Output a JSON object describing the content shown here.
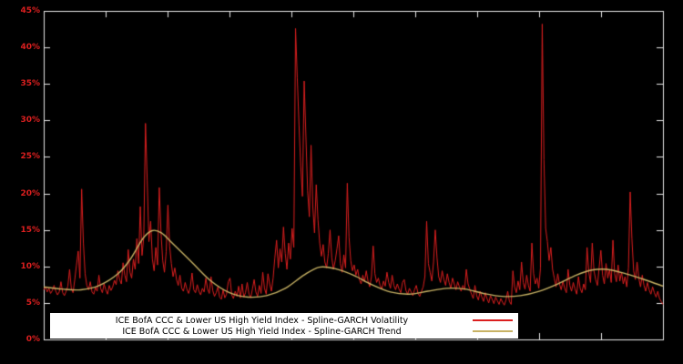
{
  "chart_data": {
    "type": "line",
    "title": "",
    "xlabel": "",
    "ylabel": "",
    "ylim": [
      0,
      45
    ],
    "y_ticks": [
      "0%",
      "5%",
      "10%",
      "15%",
      "20%",
      "25%",
      "30%",
      "35%",
      "40%",
      "45%"
    ],
    "grid": false,
    "legend_position": "bottom-center-inside",
    "background": "#000000",
    "frame_color": "#e8e8e8",
    "tick_label_color": "#db1f1f",
    "legend_bg": "#ffffff",
    "legend_text_color": "#000000",
    "series": [
      {
        "name": "ICE BofA CCC & Lower US High Yield Index - Spline-GARCH Volatility",
        "color": "#db1f1f",
        "style": "spiky",
        "values": [
          6.8,
          7.2,
          6.5,
          7.0,
          6.3,
          6.7,
          7.4,
          6.6,
          6.1,
          6.5,
          7.9,
          6.4,
          6.0,
          6.6,
          7.3,
          9.6,
          7.0,
          6.4,
          8.2,
          10.2,
          12.1,
          8.4,
          20.6,
          13.2,
          9.0,
          7.4,
          6.8,
          7.9,
          6.5,
          6.2,
          7.1,
          6.6,
          8.8,
          7.0,
          6.4,
          7.6,
          6.8,
          6.2,
          7.4,
          6.7,
          7.2,
          8.1,
          7.5,
          9.4,
          8.2,
          7.6,
          10.5,
          8.8,
          7.9,
          12.3,
          9.2,
          8.4,
          11.0,
          9.6,
          13.8,
          10.4,
          18.2,
          11.5,
          14.0,
          29.6,
          21.8,
          13.4,
          16.2,
          11.0,
          9.4,
          12.6,
          10.2,
          20.8,
          14.6,
          10.8,
          9.2,
          12.0,
          18.4,
          12.8,
          10.4,
          8.6,
          9.8,
          8.2,
          7.4,
          8.8,
          7.0,
          6.6,
          7.8,
          6.9,
          6.3,
          7.2,
          9.1,
          6.8,
          6.4,
          7.5,
          6.6,
          6.1,
          7.0,
          6.5,
          8.4,
          6.9,
          6.3,
          8.6,
          6.7,
          5.9,
          6.4,
          7.2,
          5.8,
          5.5,
          6.8,
          5.7,
          6.2,
          7.9,
          8.4,
          6.1,
          5.6,
          6.6,
          5.9,
          7.3,
          5.7,
          7.6,
          5.8,
          6.4,
          7.8,
          6.2,
          5.7,
          6.9,
          8.2,
          6.5,
          5.9,
          7.4,
          6.3,
          9.2,
          7.0,
          6.2,
          9.0,
          7.6,
          6.6,
          8.4,
          11.2,
          13.6,
          9.8,
          12.4,
          10.6,
          15.4,
          11.8,
          9.6,
          13.2,
          11.0,
          15.2,
          12.6,
          42.6,
          35.8,
          29.4,
          23.8,
          19.6,
          35.4,
          27.8,
          20.4,
          16.8,
          26.6,
          18.2,
          14.6,
          21.2,
          16.4,
          13.2,
          11.4,
          13.0,
          10.6,
          9.8,
          11.8,
          15.0,
          11.2,
          9.6,
          10.8,
          12.4,
          14.2,
          10.4,
          9.2,
          11.6,
          9.8,
          21.4,
          14.0,
          10.8,
          9.4,
          10.2,
          8.8,
          9.6,
          8.2,
          7.6,
          8.8,
          7.9,
          9.4,
          8.0,
          7.2,
          8.6,
          12.8,
          9.0,
          7.8,
          8.4,
          7.4,
          6.9,
          8.0,
          7.3,
          9.2,
          7.8,
          7.0,
          8.8,
          7.4,
          6.8,
          7.6,
          6.9,
          6.4,
          7.8,
          8.2,
          6.7,
          6.2,
          7.0,
          6.5,
          6.0,
          6.8,
          7.4,
          6.3,
          5.9,
          6.6,
          7.2,
          8.6,
          16.2,
          10.4,
          9.2,
          8.0,
          10.6,
          15.0,
          11.2,
          8.6,
          7.8,
          9.4,
          8.2,
          7.4,
          9.0,
          7.8,
          7.0,
          8.4,
          7.6,
          6.8,
          7.9,
          7.2,
          6.6,
          7.4,
          6.8,
          9.6,
          7.6,
          6.9,
          6.2,
          5.6,
          7.4,
          6.0,
          5.4,
          6.6,
          5.8,
          5.2,
          6.4,
          5.6,
          5.0,
          6.0,
          5.5,
          4.9,
          5.8,
          5.3,
          4.8,
          5.6,
          5.1,
          4.7,
          5.4,
          6.6,
          5.2,
          4.8,
          9.4,
          7.2,
          6.4,
          8.0,
          6.8,
          10.6,
          7.8,
          6.9,
          8.8,
          7.4,
          6.6,
          13.2,
          9.0,
          7.6,
          8.4,
          7.0,
          9.8,
          43.2,
          24.6,
          15.2,
          13.4,
          10.8,
          12.6,
          9.6,
          8.4,
          7.2,
          9.0,
          7.6,
          6.8,
          8.0,
          7.0,
          6.4,
          9.6,
          7.4,
          6.6,
          7.8,
          6.9,
          6.2,
          8.6,
          7.0,
          6.4,
          7.6,
          6.8,
          12.6,
          9.2,
          7.8,
          13.2,
          9.4,
          8.2,
          7.4,
          9.8,
          12.2,
          8.8,
          7.6,
          10.4,
          8.4,
          9.6,
          7.8,
          13.6,
          9.0,
          7.9,
          10.2,
          8.0,
          9.2,
          7.6,
          8.6,
          7.2,
          9.8,
          20.2,
          13.8,
          9.4,
          8.2,
          10.6,
          8.4,
          7.2,
          8.8,
          7.4,
          6.6,
          7.8,
          6.8,
          6.2,
          7.2,
          6.4,
          5.8,
          6.6,
          5.6,
          5.2,
          4.8
        ]
      },
      {
        "name": "ICE BofA CCC & Lower US High Yield Index - Spline-GARCH Trend",
        "color": "#c8b264",
        "style": "smooth",
        "points": [
          [
            0.0,
            7.2
          ],
          [
            0.03,
            6.9
          ],
          [
            0.06,
            6.8
          ],
          [
            0.09,
            7.4
          ],
          [
            0.12,
            9.0
          ],
          [
            0.14,
            11.0
          ],
          [
            0.16,
            13.8
          ],
          [
            0.175,
            14.9
          ],
          [
            0.19,
            14.6
          ],
          [
            0.21,
            13.0
          ],
          [
            0.24,
            10.5
          ],
          [
            0.27,
            8.0
          ],
          [
            0.3,
            6.4
          ],
          [
            0.33,
            5.8
          ],
          [
            0.36,
            6.0
          ],
          [
            0.39,
            7.0
          ],
          [
            0.42,
            8.8
          ],
          [
            0.445,
            9.9
          ],
          [
            0.47,
            9.7
          ],
          [
            0.5,
            8.8
          ],
          [
            0.53,
            7.5
          ],
          [
            0.56,
            6.5
          ],
          [
            0.59,
            6.2
          ],
          [
            0.62,
            6.6
          ],
          [
            0.65,
            7.0
          ],
          [
            0.68,
            6.9
          ],
          [
            0.71,
            6.3
          ],
          [
            0.74,
            5.9
          ],
          [
            0.77,
            6.0
          ],
          [
            0.8,
            6.6
          ],
          [
            0.83,
            7.6
          ],
          [
            0.86,
            8.8
          ],
          [
            0.885,
            9.5
          ],
          [
            0.91,
            9.6
          ],
          [
            0.94,
            9.0
          ],
          [
            0.97,
            8.2
          ],
          [
            1.0,
            7.3
          ]
        ]
      }
    ]
  }
}
